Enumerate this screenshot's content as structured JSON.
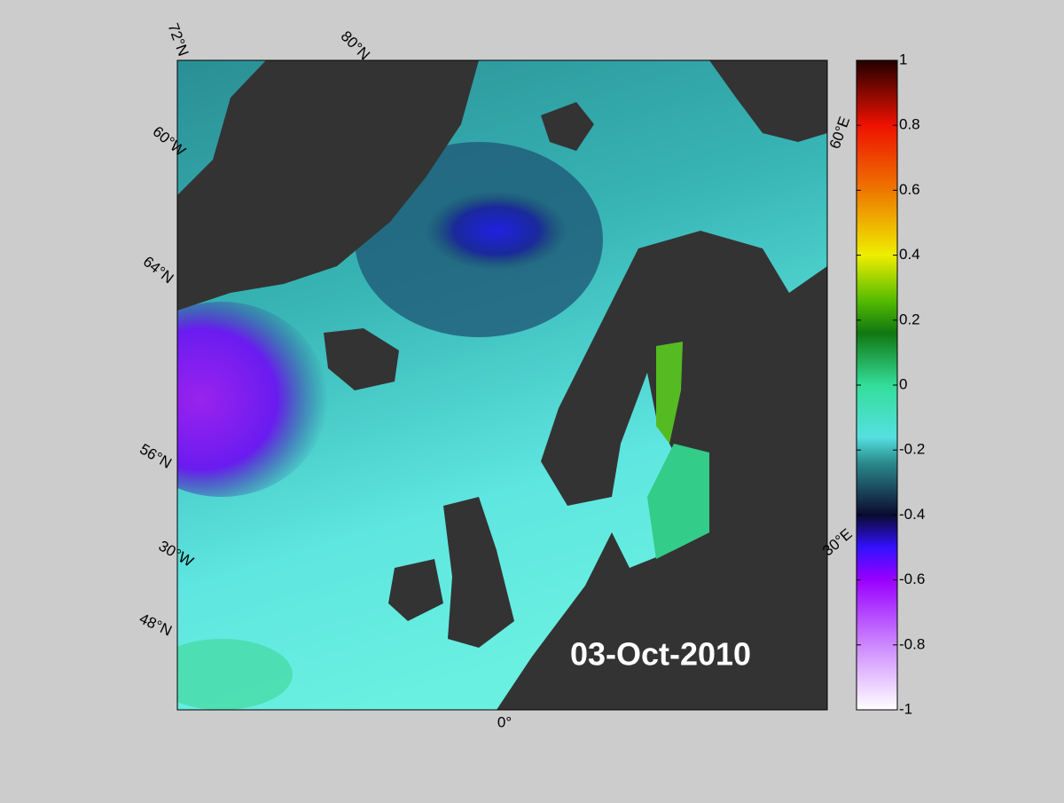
{
  "map": {
    "date_label": "03-Oct-2010",
    "graticule_labels": [
      "72°N",
      "80°N",
      "60°W",
      "64°N",
      "56°N",
      "30°W",
      "48°N",
      "0°",
      "60°E",
      "30°E"
    ],
    "colorbar": {
      "lim": [
        -1,
        1
      ],
      "ticks": [
        1,
        0.8,
        0.6,
        0.4,
        0.2,
        0,
        -0.2,
        -0.4,
        -0.6,
        -0.8,
        -1
      ]
    }
  }
}
